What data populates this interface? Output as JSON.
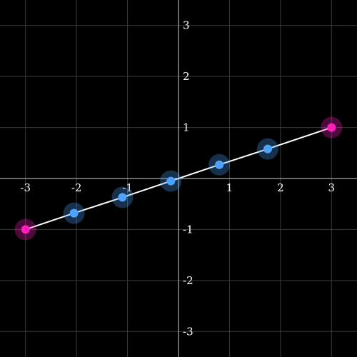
{
  "chart_data": {
    "type": "line",
    "title": "",
    "xlabel": "",
    "ylabel": "",
    "xlim": [
      -3.5,
      3.5
    ],
    "ylim": [
      -3.5,
      3.5
    ],
    "grid": true,
    "x_ticks": [
      -3,
      -2,
      -1,
      1,
      2,
      3
    ],
    "y_ticks": [
      -3,
      -2,
      -1,
      1,
      2,
      3
    ],
    "x_tick_labels": [
      "-3",
      "-2",
      "-1",
      "1",
      "2",
      "3"
    ],
    "y_tick_labels": [
      "-3",
      "-2",
      "-1",
      "1",
      "2",
      "3"
    ],
    "series": [
      {
        "x": [
          -3.0,
          -2.05,
          -1.1,
          -0.15,
          0.8,
          1.75,
          3.0
        ],
        "y": [
          -1.0,
          -0.68,
          -0.37,
          -0.05,
          0.27,
          0.58,
          1.0
        ]
      }
    ],
    "endpoint_indices": [
      0,
      6
    ],
    "colors": {
      "background": "#000000",
      "grid": "#3a3a3a",
      "axis": "#cfcfcf",
      "line": "#ffffff",
      "endpoint": "#ff1fbf",
      "endpoint_halo": "#ff1fbf",
      "point": "#4da3ff",
      "point_halo": "#4da3ff",
      "text": "#ffffff"
    }
  }
}
